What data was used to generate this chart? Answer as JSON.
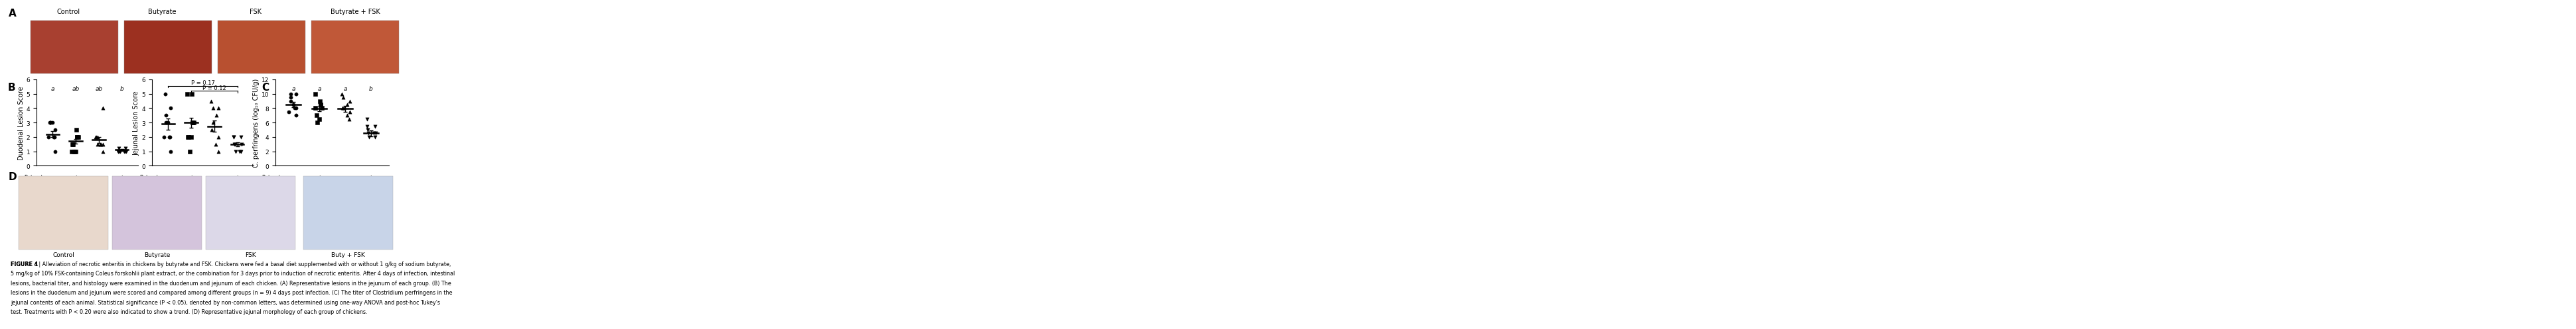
{
  "panel_A_labels": [
    "Control",
    "Butyrate",
    "FSK",
    "Butyrate + FSK"
  ],
  "panel_A_colors_left": [
    "#c8522a",
    "#b84020"
  ],
  "panel_A_colors_right": [
    "#c86030",
    "#b84828"
  ],
  "duodenal_means": [
    2.2,
    1.7,
    1.8,
    1.1
  ],
  "duodenal_sem": [
    0.22,
    0.18,
    0.2,
    0.08
  ],
  "duodenal_data": [
    [
      1.0,
      2.0,
      2.0,
      2.0,
      3.0,
      3.0,
      3.0,
      2.5,
      3.0
    ],
    [
      1.0,
      1.0,
      1.5,
      1.5,
      2.0,
      2.0,
      2.0,
      2.5,
      1.0
    ],
    [
      1.0,
      1.5,
      1.5,
      2.0,
      2.0,
      1.5,
      4.0,
      1.5,
      2.0
    ],
    [
      1.0,
      1.0,
      1.0,
      1.0,
      1.0,
      1.2,
      1.2,
      1.0,
      1.0
    ]
  ],
  "duodenal_letters": [
    "a",
    "ab",
    "ab",
    "b"
  ],
  "duodenal_ylim": [
    0,
    6
  ],
  "duodenal_yticks": [
    0,
    1,
    2,
    3,
    4,
    5,
    6
  ],
  "duodenal_ylabel": "Duodenal Lesion Score",
  "jejunal_means": [
    2.9,
    3.0,
    2.75,
    1.5
  ],
  "jejunal_sem": [
    0.4,
    0.35,
    0.38,
    0.13
  ],
  "jejunal_data": [
    [
      1.0,
      2.0,
      2.0,
      2.0,
      3.0,
      3.0,
      3.5,
      4.0,
      5.0
    ],
    [
      1.0,
      2.0,
      2.0,
      2.0,
      3.0,
      3.0,
      3.0,
      5.0,
      5.0
    ],
    [
      1.0,
      1.5,
      2.0,
      2.5,
      3.0,
      3.5,
      4.0,
      4.0,
      4.5
    ],
    [
      1.0,
      1.0,
      1.0,
      1.5,
      1.5,
      1.5,
      2.0,
      2.0,
      2.0
    ]
  ],
  "jejunal_ylim": [
    0,
    6
  ],
  "jejunal_yticks": [
    0,
    1,
    2,
    3,
    4,
    5,
    6
  ],
  "jejunal_ylabel": "Jejunal Lesion Score",
  "jejunal_pval1": "P = 0.17",
  "jejunal_pval2": "P = 0.12",
  "cperfringens_means": [
    8.5,
    7.9,
    7.9,
    4.5
  ],
  "cperfringens_sem": [
    0.38,
    0.32,
    0.38,
    0.42
  ],
  "cperfringens_data": [
    [
      7.0,
      7.5,
      8.0,
      8.0,
      8.5,
      9.0,
      9.5,
      10.0,
      10.0
    ],
    [
      6.0,
      6.5,
      7.0,
      8.0,
      8.0,
      8.5,
      8.5,
      9.0,
      10.0
    ],
    [
      6.5,
      7.0,
      7.5,
      8.0,
      8.0,
      8.5,
      9.0,
      9.5,
      10.0
    ],
    [
      4.0,
      4.0,
      4.5,
      4.5,
      4.5,
      5.0,
      5.5,
      5.5,
      6.5
    ]
  ],
  "cperfringens_letters": [
    "a",
    "a",
    "a",
    "b"
  ],
  "cperfringens_ylim": [
    0,
    12
  ],
  "cperfringens_yticks": [
    0,
    2,
    4,
    6,
    8,
    10,
    12
  ],
  "cperfringens_ylabel": "C. perfringens (log₁₀ CFU/g)",
  "butyrate_row": [
    "-",
    "+",
    "-",
    "+"
  ],
  "cfextract_row": [
    "-",
    "-",
    "+",
    "+"
  ],
  "histo_labels": [
    "Control",
    "Butyrate",
    "FSK",
    "Buty + FSK"
  ],
  "histo_colors": [
    "#e8d8cc",
    "#d4c4dc",
    "#dcd8e8",
    "#c8d4e8"
  ],
  "figure_caption_bold": "FIGURE 4",
  "figure_caption_rest": " | Alleviation of necrotic enteritis in chickens by butyrate and FSK. Chickens were fed a basal diet supplemented with or without 1 g/kg of sodium butyrate, 5 mg/kg of 10% FSK-containing Coleus forskohlii plant extract, or the combination for 3 days prior to induction of necrotic enteritis. After 4 days of infection, intestinal lesions, bacterial titer, and histology were examined in the duodenum and jejunum of each chicken. (A) Representative lesions in the jejunum of each group. (B) The lesions in the duodenum and jejunum were scored and compared among different groups (n = 9) 4 days post infection. (C) The titer of Clostridium perfringens in the jejunal contents of each animal. Statistical significance (P < 0.05), denoted by non-common letters, was determined using one-way ANOVA and post-hoc Tukey's test. Treatments with P < 0.20 were also indicated to show a trend. (D) Representative jejunal morphology of each group of chickens.",
  "bg_color": "white",
  "panel_label_fontsize": 11,
  "axis_label_fontsize": 7,
  "tick_fontsize": 6.5,
  "caption_fontsize": 5.8,
  "marker_size_pt": 14
}
